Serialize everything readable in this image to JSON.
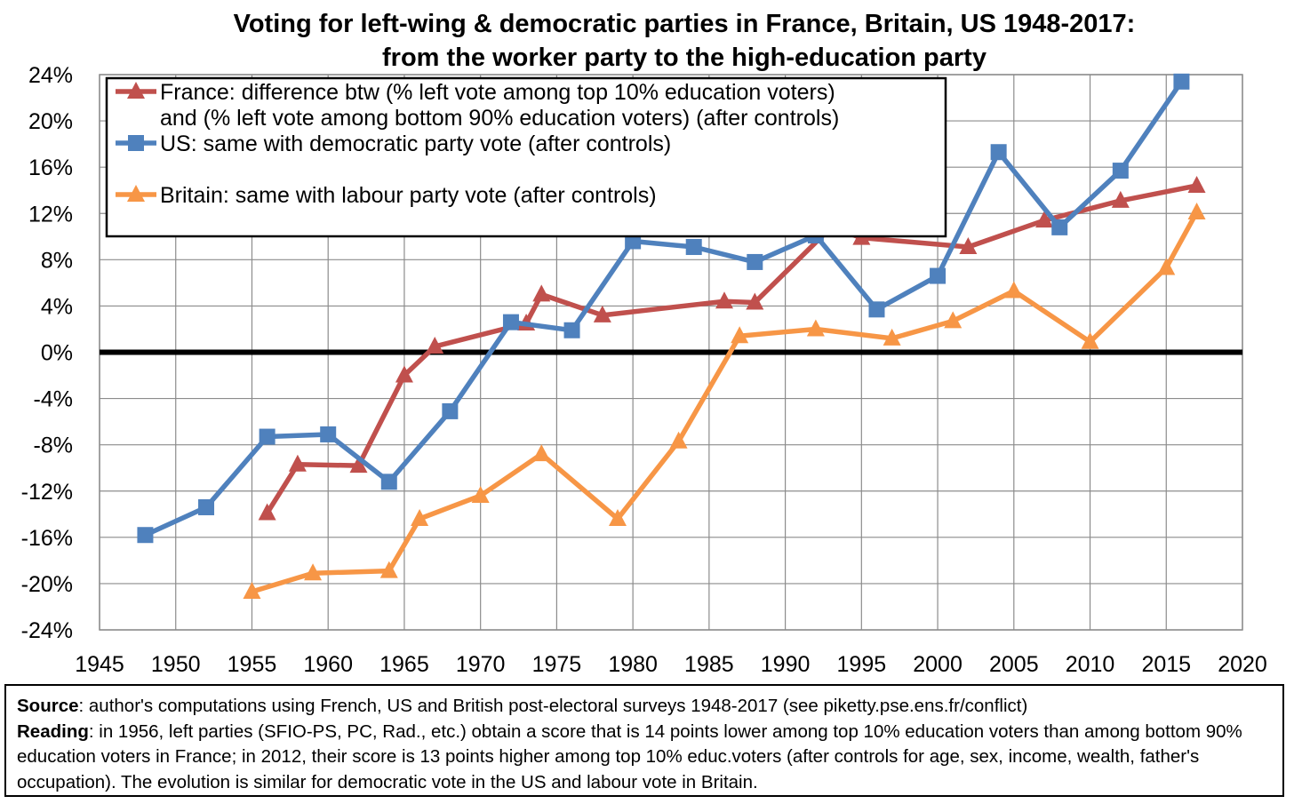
{
  "chart_data": {
    "type": "line",
    "title": "Voting for left-wing & democratic parties in France, Britain, US 1948-2017:",
    "subtitle": "from the worker party to the high-education party",
    "xlabel": "",
    "ylabel": "",
    "xlim": [
      1945,
      2020
    ],
    "ylim": [
      -24,
      24
    ],
    "x_ticks": [
      "1945",
      "1950",
      "1955",
      "1960",
      "1965",
      "1970",
      "1975",
      "1980",
      "1985",
      "1990",
      "1995",
      "2000",
      "2005",
      "2010",
      "2015",
      "2020"
    ],
    "y_ticks": [
      "24%",
      "20%",
      "16%",
      "12%",
      "8%",
      "4%",
      "0%",
      "-4%",
      "-8%",
      "-12%",
      "-16%",
      "-20%",
      "-24%"
    ],
    "grid": true,
    "legend_position": "top-left",
    "series": [
      {
        "name": "France: difference btw (% left vote among top 10% education voters)",
        "name_line2": "and (% left vote among bottom 90% education voters) (after controls)",
        "color": "#c0504d",
        "marker": "triangle",
        "x": [
          1956,
          1958,
          1962,
          1965,
          1967,
          1973,
          1974,
          1978,
          1986,
          1988,
          1993,
          1995,
          2002,
          2007,
          2012,
          2017
        ],
        "y": [
          -13.9,
          -9.7,
          -9.8,
          -2.0,
          0.5,
          2.5,
          5.0,
          3.2,
          4.4,
          4.3,
          10.8,
          9.9,
          9.1,
          11.4,
          13.1,
          14.4
        ]
      },
      {
        "name": "US: same with democratic party vote (after controls)",
        "color": "#4f81bd",
        "marker": "square",
        "x": [
          1948,
          1952,
          1956,
          1960,
          1964,
          1968,
          1972,
          1976,
          1980,
          1984,
          1988,
          1992,
          1996,
          2000,
          2004,
          2008,
          2012,
          2016
        ],
        "y": [
          -15.8,
          -13.4,
          -7.3,
          -7.1,
          -11.2,
          -5.1,
          2.6,
          1.9,
          9.6,
          9.1,
          7.8,
          10.1,
          3.7,
          6.6,
          17.3,
          10.8,
          15.7,
          23.4
        ]
      },
      {
        "name": "Britain: same with labour party vote (after controls)",
        "color": "#f79646",
        "marker": "triangle",
        "x": [
          1955,
          1959,
          1964,
          1966,
          1970,
          1974,
          1979,
          1983,
          1987,
          1992,
          1997,
          2001,
          2005,
          2010,
          2015,
          2017
        ],
        "y": [
          -20.7,
          -19.1,
          -18.9,
          -14.4,
          -12.4,
          -8.8,
          -14.4,
          -7.7,
          1.4,
          2.0,
          1.2,
          2.7,
          5.3,
          0.9,
          7.3,
          12.1
        ]
      }
    ]
  },
  "note": {
    "source_label": "Source",
    "source_text": ": author's computations using French, US and British post-electoral surveys 1948-2017 (see piketty.pse.ens.fr/conflict)",
    "reading_label": "Reading",
    "reading_text": ": in 1956, left parties (SFIO-PS, PC, Rad., etc.) obtain a score that is 14 points lower among top 10% education voters than among bottom 90% education voters in France; in 2012, their score is 13 points higher among top 10% educ.voters (after controls for age, sex, income, wealth, father's occupation). The evolution is similar for democratic vote in the US and labour vote in Britain."
  }
}
